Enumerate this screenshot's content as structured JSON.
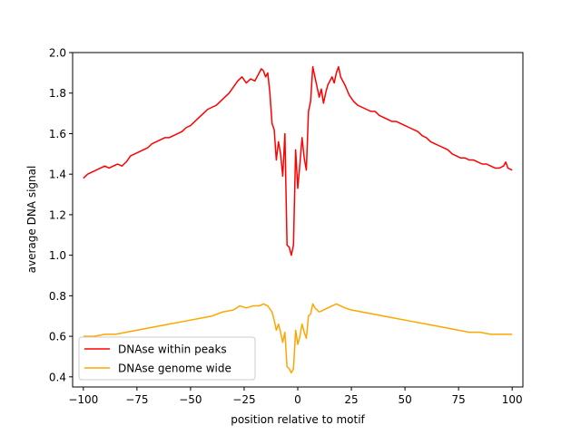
{
  "chart_data": {
    "type": "line",
    "title": "",
    "xlabel": "position relative to motif",
    "ylabel": "average DNA signal",
    "xlim": [
      -105,
      105
    ],
    "ylim": [
      0.35,
      2.0
    ],
    "x_ticks": [
      -100,
      -75,
      -50,
      -25,
      0,
      25,
      50,
      75,
      100
    ],
    "x_tick_labels": [
      "−100",
      "−75",
      "−50",
      "−25",
      "0",
      "25",
      "50",
      "75",
      "100"
    ],
    "y_ticks": [
      0.4,
      0.6,
      0.8,
      1.0,
      1.2,
      1.4,
      1.6,
      1.8,
      2.0
    ],
    "y_tick_labels": [
      "0.4",
      "0.6",
      "0.8",
      "1.0",
      "1.2",
      "1.4",
      "1.6",
      "1.8",
      "2.0"
    ],
    "grid": false,
    "legend_position": "lower-left",
    "series": [
      {
        "name": "DNAse within peaks",
        "color": "#ff0000",
        "points": [
          [
            -100,
            1.38
          ],
          [
            -98,
            1.4
          ],
          [
            -96,
            1.41
          ],
          [
            -94,
            1.42
          ],
          [
            -92,
            1.43
          ],
          [
            -90,
            1.44
          ],
          [
            -88,
            1.43
          ],
          [
            -86,
            1.44
          ],
          [
            -84,
            1.45
          ],
          [
            -82,
            1.44
          ],
          [
            -80,
            1.46
          ],
          [
            -78,
            1.49
          ],
          [
            -76,
            1.5
          ],
          [
            -74,
            1.51
          ],
          [
            -72,
            1.52
          ],
          [
            -70,
            1.53
          ],
          [
            -68,
            1.55
          ],
          [
            -66,
            1.56
          ],
          [
            -64,
            1.57
          ],
          [
            -62,
            1.58
          ],
          [
            -60,
            1.58
          ],
          [
            -58,
            1.59
          ],
          [
            -56,
            1.6
          ],
          [
            -54,
            1.61
          ],
          [
            -52,
            1.63
          ],
          [
            -50,
            1.64
          ],
          [
            -48,
            1.66
          ],
          [
            -46,
            1.68
          ],
          [
            -44,
            1.7
          ],
          [
            -42,
            1.72
          ],
          [
            -40,
            1.73
          ],
          [
            -38,
            1.74
          ],
          [
            -36,
            1.76
          ],
          [
            -34,
            1.78
          ],
          [
            -32,
            1.8
          ],
          [
            -30,
            1.83
          ],
          [
            -28,
            1.86
          ],
          [
            -26,
            1.88
          ],
          [
            -24,
            1.85
          ],
          [
            -22,
            1.87
          ],
          [
            -20,
            1.86
          ],
          [
            -18,
            1.9
          ],
          [
            -17,
            1.92
          ],
          [
            -16,
            1.91
          ],
          [
            -15,
            1.88
          ],
          [
            -14,
            1.9
          ],
          [
            -13,
            1.8
          ],
          [
            -12,
            1.65
          ],
          [
            -11,
            1.62
          ],
          [
            -10,
            1.47
          ],
          [
            -9,
            1.56
          ],
          [
            -8,
            1.5
          ],
          [
            -7,
            1.39
          ],
          [
            -6,
            1.6
          ],
          [
            -5,
            1.05
          ],
          [
            -4,
            1.04
          ],
          [
            -3,
            1.0
          ],
          [
            -2,
            1.05
          ],
          [
            -1,
            1.52
          ],
          [
            0,
            1.33
          ],
          [
            1,
            1.45
          ],
          [
            2,
            1.58
          ],
          [
            3,
            1.48
          ],
          [
            4,
            1.42
          ],
          [
            5,
            1.71
          ],
          [
            6,
            1.76
          ],
          [
            7,
            1.93
          ],
          [
            8,
            1.88
          ],
          [
            9,
            1.83
          ],
          [
            10,
            1.78
          ],
          [
            11,
            1.82
          ],
          [
            12,
            1.75
          ],
          [
            13,
            1.8
          ],
          [
            14,
            1.84
          ],
          [
            15,
            1.86
          ],
          [
            16,
            1.88
          ],
          [
            17,
            1.85
          ],
          [
            18,
            1.9
          ],
          [
            19,
            1.93
          ],
          [
            20,
            1.88
          ],
          [
            22,
            1.84
          ],
          [
            24,
            1.79
          ],
          [
            26,
            1.76
          ],
          [
            28,
            1.74
          ],
          [
            30,
            1.73
          ],
          [
            32,
            1.72
          ],
          [
            34,
            1.71
          ],
          [
            36,
            1.71
          ],
          [
            38,
            1.69
          ],
          [
            40,
            1.68
          ],
          [
            42,
            1.67
          ],
          [
            44,
            1.66
          ],
          [
            46,
            1.66
          ],
          [
            48,
            1.65
          ],
          [
            50,
            1.64
          ],
          [
            52,
            1.63
          ],
          [
            54,
            1.62
          ],
          [
            56,
            1.61
          ],
          [
            58,
            1.59
          ],
          [
            60,
            1.58
          ],
          [
            62,
            1.56
          ],
          [
            64,
            1.55
          ],
          [
            66,
            1.54
          ],
          [
            68,
            1.53
          ],
          [
            70,
            1.52
          ],
          [
            72,
            1.5
          ],
          [
            74,
            1.49
          ],
          [
            76,
            1.48
          ],
          [
            78,
            1.48
          ],
          [
            80,
            1.47
          ],
          [
            82,
            1.47
          ],
          [
            84,
            1.46
          ],
          [
            86,
            1.45
          ],
          [
            88,
            1.45
          ],
          [
            90,
            1.44
          ],
          [
            92,
            1.43
          ],
          [
            94,
            1.43
          ],
          [
            96,
            1.44
          ],
          [
            97,
            1.46
          ],
          [
            98,
            1.43
          ],
          [
            100,
            1.42
          ]
        ]
      },
      {
        "name": "DNAse genome wide",
        "color": "#ffa500",
        "points": [
          [
            -100,
            0.6
          ],
          [
            -95,
            0.6
          ],
          [
            -90,
            0.61
          ],
          [
            -85,
            0.61
          ],
          [
            -80,
            0.62
          ],
          [
            -75,
            0.63
          ],
          [
            -70,
            0.64
          ],
          [
            -65,
            0.65
          ],
          [
            -60,
            0.66
          ],
          [
            -55,
            0.67
          ],
          [
            -50,
            0.68
          ],
          [
            -45,
            0.69
          ],
          [
            -40,
            0.7
          ],
          [
            -35,
            0.72
          ],
          [
            -30,
            0.73
          ],
          [
            -27,
            0.75
          ],
          [
            -24,
            0.74
          ],
          [
            -21,
            0.75
          ],
          [
            -18,
            0.75
          ],
          [
            -16,
            0.76
          ],
          [
            -14,
            0.75
          ],
          [
            -12,
            0.72
          ],
          [
            -11,
            0.68
          ],
          [
            -10,
            0.63
          ],
          [
            -9,
            0.66
          ],
          [
            -8,
            0.62
          ],
          [
            -7,
            0.57
          ],
          [
            -6,
            0.62
          ],
          [
            -5,
            0.45
          ],
          [
            -4,
            0.44
          ],
          [
            -3,
            0.42
          ],
          [
            -2,
            0.44
          ],
          [
            -1,
            0.63
          ],
          [
            0,
            0.56
          ],
          [
            1,
            0.6
          ],
          [
            2,
            0.66
          ],
          [
            3,
            0.62
          ],
          [
            4,
            0.59
          ],
          [
            5,
            0.7
          ],
          [
            6,
            0.71
          ],
          [
            7,
            0.76
          ],
          [
            8,
            0.74
          ],
          [
            10,
            0.72
          ],
          [
            12,
            0.73
          ],
          [
            14,
            0.74
          ],
          [
            16,
            0.75
          ],
          [
            18,
            0.76
          ],
          [
            20,
            0.75
          ],
          [
            22,
            0.74
          ],
          [
            25,
            0.73
          ],
          [
            30,
            0.72
          ],
          [
            35,
            0.71
          ],
          [
            40,
            0.7
          ],
          [
            45,
            0.69
          ],
          [
            50,
            0.68
          ],
          [
            55,
            0.67
          ],
          [
            60,
            0.66
          ],
          [
            65,
            0.65
          ],
          [
            70,
            0.64
          ],
          [
            75,
            0.63
          ],
          [
            80,
            0.62
          ],
          [
            85,
            0.62
          ],
          [
            90,
            0.61
          ],
          [
            95,
            0.61
          ],
          [
            100,
            0.61
          ]
        ]
      }
    ]
  }
}
